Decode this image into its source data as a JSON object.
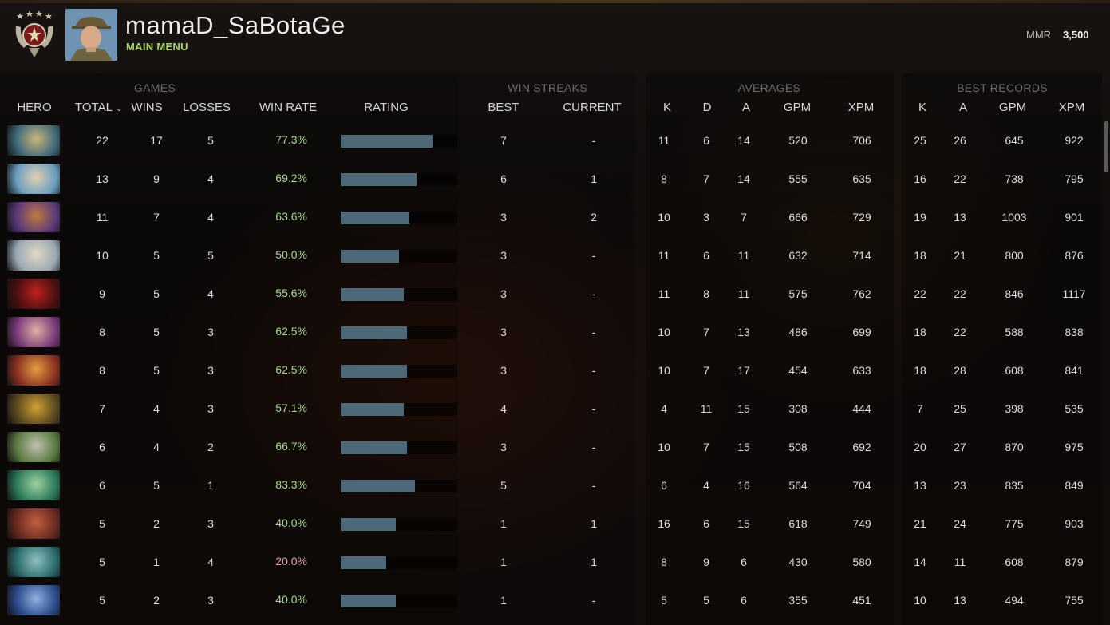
{
  "header": {
    "username": "mamaD_SaBotaGe",
    "submenu": "MAIN MENU",
    "mmr_label": "MMR",
    "mmr_value": "3,500"
  },
  "groups": {
    "games": "GAMES",
    "win_streaks": "WIN STREAKS",
    "averages": "AVERAGES",
    "best_records": "BEST RECORDS"
  },
  "columns": {
    "hero": "HERO",
    "total": "TOTAL",
    "wins": "WINS",
    "losses": "LOSSES",
    "win_rate": "WIN RATE",
    "rating": "RATING",
    "best": "BEST",
    "current": "CURRENT",
    "avg_k": "K",
    "avg_d": "D",
    "avg_a": "A",
    "avg_gpm": "GPM",
    "avg_xpm": "XPM",
    "best_k": "K",
    "best_a": "A",
    "best_gpm": "GPM",
    "best_xpm": "XPM"
  },
  "colors": {
    "win_rate_good": "#a9d98a",
    "win_rate_bad": "#e2a0a0",
    "rating_bar": "#4d6978",
    "submenu": "#a9d86a"
  },
  "rows": [
    {
      "hero_icon": "hero-portrait-1",
      "total": "22",
      "wins": "17",
      "losses": "5",
      "win_rate": "77.3%",
      "rating": 0.79,
      "best_streak": "7",
      "current_streak": "-",
      "k": "11",
      "d": "6",
      "a": "14",
      "gpm": "520",
      "xpm": "706",
      "best_k": "25",
      "best_a": "26",
      "best_gpm": "645",
      "best_xpm": "922"
    },
    {
      "hero_icon": "hero-portrait-2",
      "total": "13",
      "wins": "9",
      "losses": "4",
      "win_rate": "69.2%",
      "rating": 0.65,
      "best_streak": "6",
      "current_streak": "1",
      "k": "8",
      "d": "7",
      "a": "14",
      "gpm": "555",
      "xpm": "635",
      "best_k": "16",
      "best_a": "22",
      "best_gpm": "738",
      "best_xpm": "795"
    },
    {
      "hero_icon": "hero-portrait-3",
      "total": "11",
      "wins": "7",
      "losses": "4",
      "win_rate": "63.6%",
      "rating": 0.59,
      "best_streak": "3",
      "current_streak": "2",
      "k": "10",
      "d": "3",
      "a": "7",
      "gpm": "666",
      "xpm": "729",
      "best_k": "19",
      "best_a": "13",
      "best_gpm": "1003",
      "best_xpm": "901"
    },
    {
      "hero_icon": "hero-portrait-4",
      "total": "10",
      "wins": "5",
      "losses": "5",
      "win_rate": "50.0%",
      "rating": 0.5,
      "best_streak": "3",
      "current_streak": "-",
      "k": "11",
      "d": "6",
      "a": "11",
      "gpm": "632",
      "xpm": "714",
      "best_k": "18",
      "best_a": "21",
      "best_gpm": "800",
      "best_xpm": "876"
    },
    {
      "hero_icon": "hero-portrait-5",
      "total": "9",
      "wins": "5",
      "losses": "4",
      "win_rate": "55.6%",
      "rating": 0.54,
      "best_streak": "3",
      "current_streak": "-",
      "k": "11",
      "d": "8",
      "a": "11",
      "gpm": "575",
      "xpm": "762",
      "best_k": "22",
      "best_a": "22",
      "best_gpm": "846",
      "best_xpm": "1117"
    },
    {
      "hero_icon": "hero-portrait-6",
      "total": "8",
      "wins": "5",
      "losses": "3",
      "win_rate": "62.5%",
      "rating": 0.57,
      "best_streak": "3",
      "current_streak": "-",
      "k": "10",
      "d": "7",
      "a": "13",
      "gpm": "486",
      "xpm": "699",
      "best_k": "18",
      "best_a": "22",
      "best_gpm": "588",
      "best_xpm": "838"
    },
    {
      "hero_icon": "hero-portrait-7",
      "total": "8",
      "wins": "5",
      "losses": "3",
      "win_rate": "62.5%",
      "rating": 0.57,
      "best_streak": "3",
      "current_streak": "-",
      "k": "10",
      "d": "7",
      "a": "17",
      "gpm": "454",
      "xpm": "633",
      "best_k": "18",
      "best_a": "28",
      "best_gpm": "608",
      "best_xpm": "841"
    },
    {
      "hero_icon": "hero-portrait-8",
      "total": "7",
      "wins": "4",
      "losses": "3",
      "win_rate": "57.1%",
      "rating": 0.54,
      "best_streak": "4",
      "current_streak": "-",
      "k": "4",
      "d": "11",
      "a": "15",
      "gpm": "308",
      "xpm": "444",
      "best_k": "7",
      "best_a": "25",
      "best_gpm": "398",
      "best_xpm": "535"
    },
    {
      "hero_icon": "hero-portrait-9",
      "total": "6",
      "wins": "4",
      "losses": "2",
      "win_rate": "66.7%",
      "rating": 0.57,
      "best_streak": "3",
      "current_streak": "-",
      "k": "10",
      "d": "7",
      "a": "15",
      "gpm": "508",
      "xpm": "692",
      "best_k": "20",
      "best_a": "27",
      "best_gpm": "870",
      "best_xpm": "975"
    },
    {
      "hero_icon": "hero-portrait-10",
      "total": "6",
      "wins": "5",
      "losses": "1",
      "win_rate": "83.3%",
      "rating": 0.64,
      "best_streak": "5",
      "current_streak": "-",
      "k": "6",
      "d": "4",
      "a": "16",
      "gpm": "564",
      "xpm": "704",
      "best_k": "13",
      "best_a": "23",
      "best_gpm": "835",
      "best_xpm": "849"
    },
    {
      "hero_icon": "hero-portrait-11",
      "total": "5",
      "wins": "2",
      "losses": "3",
      "win_rate": "40.0%",
      "rating": 0.47,
      "best_streak": "1",
      "current_streak": "1",
      "k": "16",
      "d": "6",
      "a": "15",
      "gpm": "618",
      "xpm": "749",
      "best_k": "21",
      "best_a": "24",
      "best_gpm": "775",
      "best_xpm": "903"
    },
    {
      "hero_icon": "hero-portrait-12",
      "total": "5",
      "wins": "1",
      "losses": "4",
      "win_rate": "20.0%",
      "rating": 0.39,
      "best_streak": "1",
      "current_streak": "1",
      "k": "8",
      "d": "9",
      "a": "6",
      "gpm": "430",
      "xpm": "580",
      "best_k": "14",
      "best_a": "11",
      "best_gpm": "608",
      "best_xpm": "879"
    },
    {
      "hero_icon": "hero-portrait-13",
      "total": "5",
      "wins": "2",
      "losses": "3",
      "win_rate": "40.0%",
      "rating": 0.47,
      "best_streak": "1",
      "current_streak": "-",
      "k": "5",
      "d": "5",
      "a": "6",
      "gpm": "355",
      "xpm": "451",
      "best_k": "10",
      "best_a": "13",
      "best_gpm": "494",
      "best_xpm": "755"
    }
  ]
}
